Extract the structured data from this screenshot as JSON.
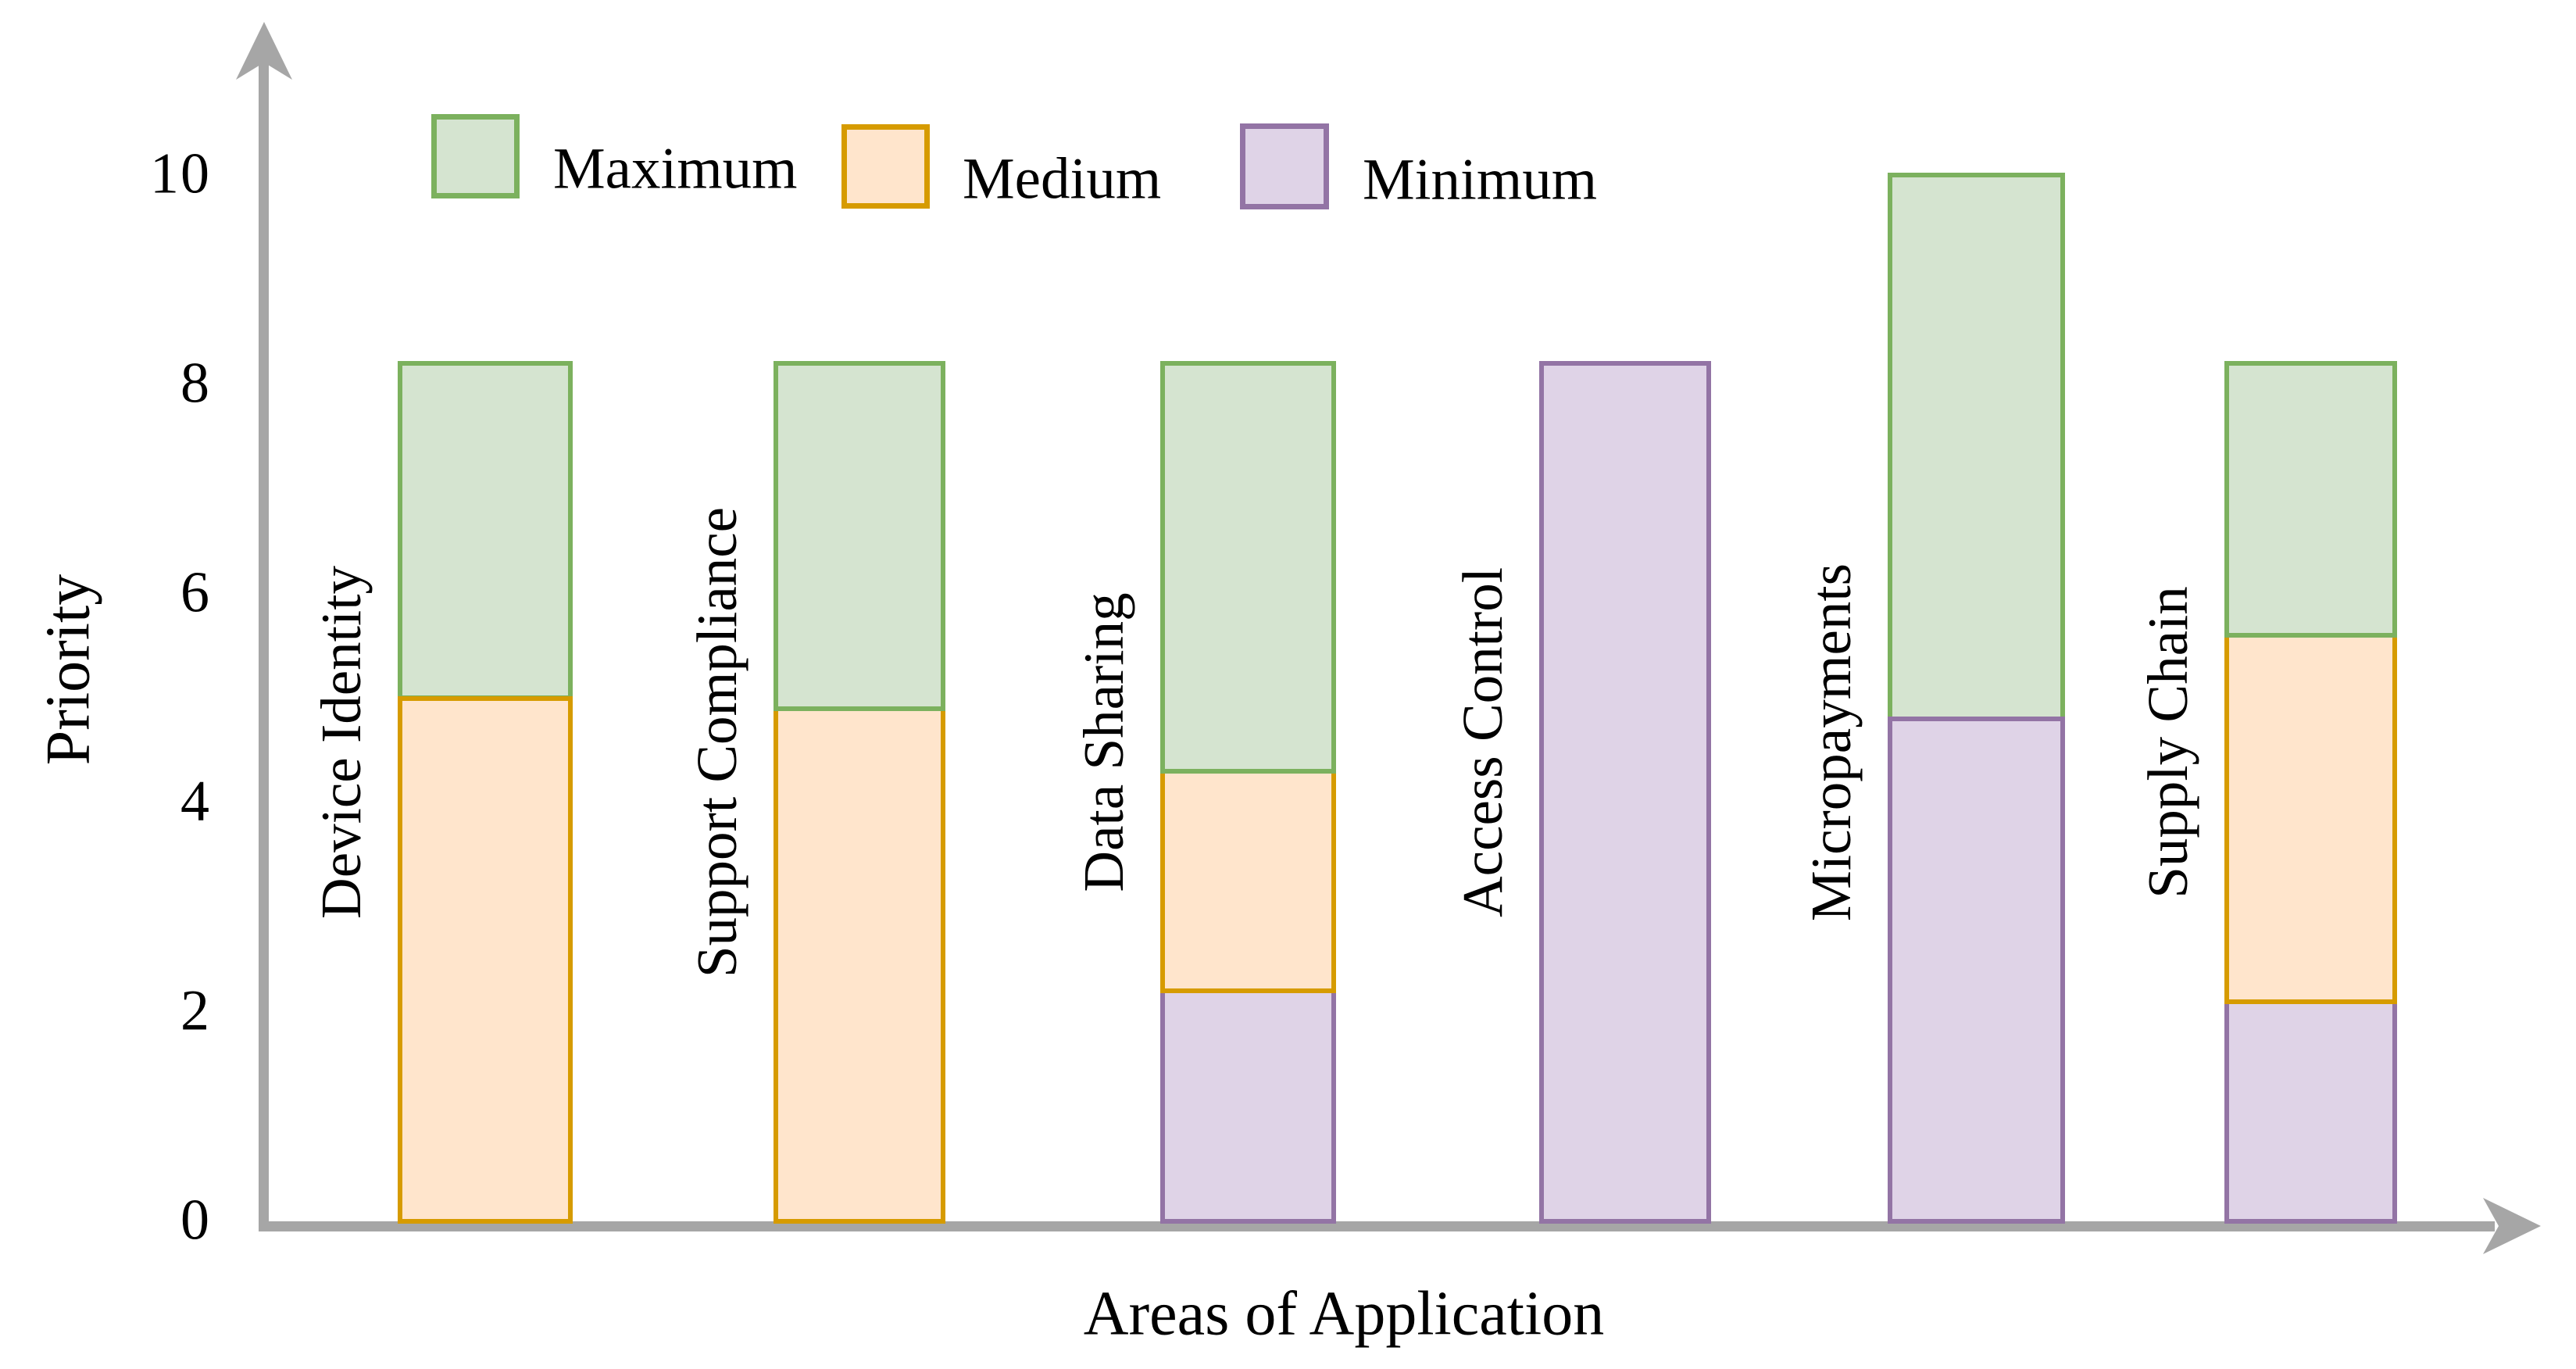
{
  "y_axis": {
    "title": "Priority",
    "tick_labels": [
      "0",
      "2",
      "4",
      "6",
      "8",
      "10"
    ],
    "tick_values": [
      0,
      2,
      4,
      6,
      8,
      10
    ],
    "range": [
      0,
      10
    ]
  },
  "x_axis": {
    "title": "Areas of Application"
  },
  "legend": {
    "items": [
      {
        "label": "Maximum",
        "key": "maximum"
      },
      {
        "label": "Medium",
        "key": "medium"
      },
      {
        "label": "Minimum",
        "key": "minimum"
      }
    ],
    "position": "top-left-inside"
  },
  "colors": {
    "maximum": {
      "fill": "#d5e4d0",
      "edge": "#7cb15e"
    },
    "medium": {
      "fill": "#ffe5cc",
      "edge": "#d69b00"
    },
    "minimum": {
      "fill": "#dfd3e7",
      "edge": "#9374a5"
    },
    "axis": "#a6a6a6",
    "text": "#000000"
  },
  "chart_data": {
    "type": "bar",
    "stacked": true,
    "orientation": "vertical",
    "categories": [
      "Device Identity",
      "Support Compliance",
      "Data Sharing",
      "Access Control",
      "Micropayments",
      "Supply Chain"
    ],
    "series": [
      {
        "name": "Maximum",
        "key": "maximum",
        "values": [
          3.2,
          3.3,
          3.9,
          0,
          5.2,
          2.6
        ]
      },
      {
        "name": "Medium",
        "key": "medium",
        "values": [
          5.0,
          4.9,
          2.1,
          0,
          0,
          3.5
        ]
      },
      {
        "name": "Minimum",
        "key": "minimum",
        "values": [
          0,
          0,
          2.2,
          8.2,
          4.8,
          2.1
        ]
      }
    ],
    "stack_order_bottom_to_top": [
      "minimum",
      "medium",
      "maximum"
    ],
    "totals": [
      8.2,
      8.2,
      8.2,
      8.2,
      10.0,
      8.2
    ],
    "title": "",
    "xlabel": "Areas of Application",
    "ylabel": "Priority",
    "ylim": [
      0,
      10
    ],
    "grid": false,
    "category_label_style": "rotated-90-left-of-bar"
  }
}
